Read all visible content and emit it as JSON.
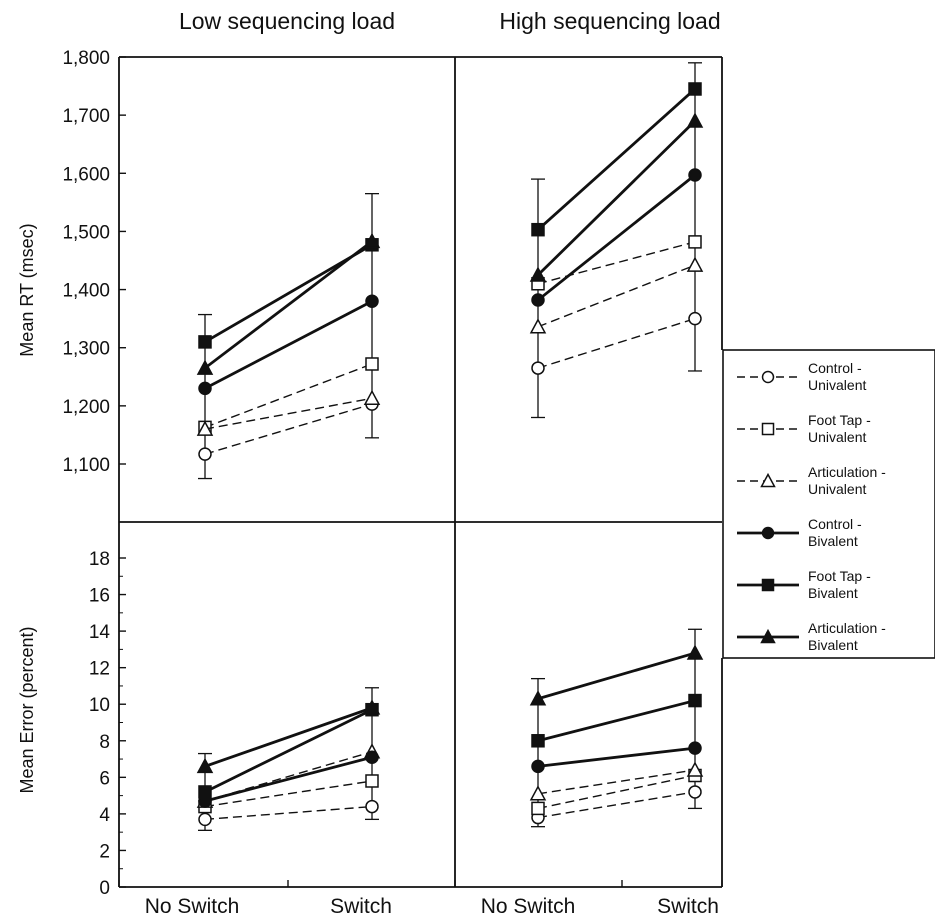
{
  "chart_data": {
    "type": "line",
    "panel_titles": [
      "Low sequencing load",
      "High sequencing load"
    ],
    "categories": [
      "No Switch",
      "Switch"
    ],
    "series_legend": [
      {
        "name": "Control - Univalent",
        "line1": "Control -",
        "line2": "Univalent",
        "line": "dashed",
        "marker": "circle-open"
      },
      {
        "name": "Foot Tap - Univalent",
        "line1": "Foot Tap -",
        "line2": "Univalent",
        "line": "dashed",
        "marker": "square-open"
      },
      {
        "name": "Articulation - Univalent",
        "line1": "Articulation -",
        "line2": "Univalent",
        "line": "dashed",
        "marker": "triangle-open"
      },
      {
        "name": "Control - Bivalent",
        "line1": "Control -",
        "line2": "Bivalent",
        "line": "solid",
        "marker": "circle-filled"
      },
      {
        "name": "Foot Tap - Bivalent",
        "line1": "Foot Tap -",
        "line2": "Bivalent",
        "line": "solid",
        "marker": "square-filled"
      },
      {
        "name": "Articulation - Bivalent",
        "line1": "Articulation -",
        "line2": "Bivalent",
        "line": "solid",
        "marker": "triangle-filled"
      }
    ],
    "rt": {
      "ylabel": "Mean RT (msec)",
      "ylim": [
        1000,
        1800
      ],
      "yticks": [
        {
          "value": 1100,
          "label": "1,100"
        },
        {
          "value": 1200,
          "label": "1,200"
        },
        {
          "value": 1300,
          "label": "1,300"
        },
        {
          "value": 1400,
          "label": "1,400"
        },
        {
          "value": 1500,
          "label": "1,500"
        },
        {
          "value": 1600,
          "label": "1,600"
        },
        {
          "value": 1700,
          "label": "1,700"
        },
        {
          "value": 1800,
          "label": "1,800"
        }
      ],
      "low": [
        {
          "values": [
            1117,
            1203
          ]
        },
        {
          "values": [
            1163,
            1272
          ]
        },
        {
          "values": [
            1160,
            1213
          ]
        },
        {
          "values": [
            1230,
            1380
          ]
        },
        {
          "values": [
            1310,
            1477
          ]
        },
        {
          "values": [
            1265,
            1483
          ]
        }
      ],
      "high": [
        {
          "values": [
            1265,
            1350
          ]
        },
        {
          "values": [
            1410,
            1482
          ]
        },
        {
          "values": [
            1336,
            1442
          ]
        },
        {
          "values": [
            1382,
            1597
          ]
        },
        {
          "values": [
            1503,
            1745
          ]
        },
        {
          "values": [
            1425,
            1690
          ]
        }
      ],
      "error_bars": {
        "low": [
          {
            "min": 1075,
            "max": 1357
          },
          {
            "min": 1145,
            "max": 1565
          }
        ],
        "high": [
          {
            "min": 1180,
            "max": 1590
          },
          {
            "min": 1260,
            "max": 1790
          }
        ]
      }
    },
    "error": {
      "ylabel": "Mean Error (percent)",
      "ylim": [
        0,
        19
      ],
      "yticks": [
        {
          "value": 0,
          "label": "0"
        },
        {
          "value": 2,
          "label": "2"
        },
        {
          "value": 4,
          "label": "4"
        },
        {
          "value": 6,
          "label": "6"
        },
        {
          "value": 8,
          "label": "8"
        },
        {
          "value": 10,
          "label": "10"
        },
        {
          "value": 12,
          "label": "12"
        },
        {
          "value": 14,
          "label": "14"
        },
        {
          "value": 16,
          "label": "16"
        },
        {
          "value": 18,
          "label": "18"
        }
      ],
      "low": [
        {
          "values": [
            3.7,
            4.4
          ]
        },
        {
          "values": [
            4.4,
            5.8
          ]
        },
        {
          "values": [
            4.7,
            7.4
          ]
        },
        {
          "values": [
            4.7,
            7.1
          ]
        },
        {
          "values": [
            5.2,
            9.7
          ]
        },
        {
          "values": [
            6.6,
            9.8
          ]
        }
      ],
      "high": [
        {
          "values": [
            3.8,
            5.2
          ]
        },
        {
          "values": [
            4.3,
            6.1
          ]
        },
        {
          "values": [
            5.1,
            6.4
          ]
        },
        {
          "values": [
            6.6,
            7.6
          ]
        },
        {
          "values": [
            8.0,
            10.2
          ]
        },
        {
          "values": [
            10.3,
            12.8
          ]
        }
      ],
      "error_bars": {
        "low": [
          {
            "min": 3.1,
            "max": 7.3
          },
          {
            "min": 3.7,
            "max": 10.9
          }
        ],
        "high": [
          {
            "min": 3.3,
            "max": 11.4
          },
          {
            "min": 4.3,
            "max": 14.1
          }
        ]
      }
    }
  }
}
